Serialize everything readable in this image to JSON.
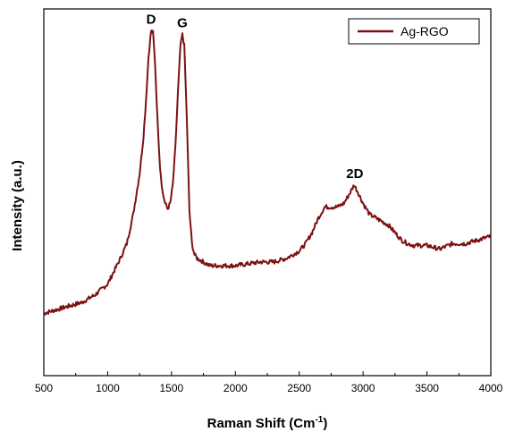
{
  "chart_data": {
    "type": "line",
    "xlabel": "Raman Shift (Cm",
    "xlabel_sup": "-1",
    "xlabel_close": ")",
    "ylabel": "Intensity (a.u.)",
    "xlim": [
      500,
      4000
    ],
    "ylim": [
      0,
      1
    ],
    "x_ticks": [
      500,
      1000,
      1500,
      2000,
      2500,
      3000,
      3500,
      4000
    ],
    "x_tick_labels": [
      "500",
      "1000",
      "1500",
      "2000",
      "2500",
      "3000",
      "3500",
      "4000"
    ],
    "y_ticks_labeled": false,
    "grid": false,
    "legend_position": "top-right",
    "series": [
      {
        "name": "Ag-RGO",
        "color": "#7b1113",
        "x": [
          500,
          600,
          700,
          800,
          900,
          1000,
          1100,
          1150,
          1200,
          1250,
          1280,
          1300,
          1320,
          1340,
          1355,
          1370,
          1390,
          1410,
          1430,
          1450,
          1470,
          1490,
          1510,
          1530,
          1550,
          1570,
          1585,
          1600,
          1620,
          1640,
          1660,
          1680,
          1700,
          1750,
          1800,
          1900,
          2000,
          2100,
          2200,
          2300,
          2400,
          2450,
          2500,
          2550,
          2600,
          2650,
          2700,
          2750,
          2800,
          2850,
          2900,
          2930,
          2960,
          3000,
          3050,
          3100,
          3150,
          3200,
          3250,
          3300,
          3350,
          3400,
          3500,
          3600,
          3700,
          3800,
          3900,
          4000
        ],
        "y": [
          0.17,
          0.18,
          0.19,
          0.2,
          0.22,
          0.25,
          0.32,
          0.36,
          0.44,
          0.55,
          0.65,
          0.75,
          0.87,
          0.94,
          0.935,
          0.86,
          0.7,
          0.57,
          0.5,
          0.47,
          0.455,
          0.47,
          0.52,
          0.62,
          0.77,
          0.9,
          0.93,
          0.9,
          0.7,
          0.45,
          0.36,
          0.33,
          0.32,
          0.31,
          0.3,
          0.3,
          0.3,
          0.305,
          0.31,
          0.31,
          0.32,
          0.33,
          0.34,
          0.36,
          0.39,
          0.43,
          0.46,
          0.46,
          0.46,
          0.47,
          0.5,
          0.52,
          0.5,
          0.47,
          0.44,
          0.43,
          0.42,
          0.41,
          0.39,
          0.37,
          0.36,
          0.355,
          0.355,
          0.345,
          0.36,
          0.36,
          0.37,
          0.38
        ]
      }
    ],
    "annotations": [
      {
        "text": "D",
        "x": 1340,
        "y": 0.94
      },
      {
        "text": "G",
        "x": 1585,
        "y": 0.93
      },
      {
        "text": "2D",
        "x": 2935,
        "y": 0.52
      }
    ]
  }
}
